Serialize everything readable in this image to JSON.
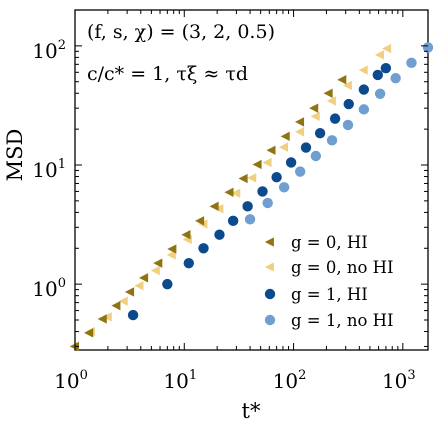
{
  "chart_data": {
    "type": "scatter",
    "title": "",
    "xlabel": "t*",
    "ylabel": "MSD",
    "x_scale": "log",
    "y_scale": "log",
    "xlim": [
      1,
      1700
    ],
    "ylim": [
      0.28,
      200
    ],
    "x_ticks": [
      {
        "value": 1,
        "base": "10",
        "exp": "0"
      },
      {
        "value": 10,
        "base": "10",
        "exp": "1"
      },
      {
        "value": 100,
        "base": "10",
        "exp": "2"
      },
      {
        "value": 1000,
        "base": "10",
        "exp": "3"
      }
    ],
    "y_ticks": [
      {
        "value": 1,
        "base": "10",
        "exp": "0"
      },
      {
        "value": 10,
        "base": "10",
        "exp": "1"
      },
      {
        "value": 100,
        "base": "10",
        "exp": "2"
      }
    ],
    "grid": false,
    "legend_position": "bottom-right",
    "annotations": [
      "(f, s, χ) = (3, 2, 0.5)",
      "c/c* = 1, τξ ≈ τd"
    ],
    "series": [
      {
        "name": "g = 0, HI",
        "marker": "triangle-left",
        "color": "#8f7410",
        "x_range": [
          1,
          280
        ],
        "x": [
          1.0,
          1.35,
          1.8,
          2.4,
          3.2,
          4.3,
          5.8,
          7.8,
          10.5,
          14,
          19,
          26,
          35,
          47,
          63,
          85,
          115,
          155,
          210,
          280
        ],
        "y": [
          0.3,
          0.39,
          0.51,
          0.66,
          0.86,
          1.13,
          1.5,
          1.97,
          2.6,
          3.4,
          4.5,
          5.9,
          7.7,
          10.1,
          13.3,
          17.4,
          23,
          30,
          40,
          52
        ]
      },
      {
        "name": "g = 0, no HI",
        "marker": "triangle-left",
        "color": "#f0d080",
        "x_range": [
          1,
          720
        ],
        "x": [
          1.0,
          1.4,
          2.0,
          2.8,
          3.9,
          5.5,
          7.7,
          10.8,
          15,
          21,
          30,
          42,
          58,
          82,
          115,
          160,
          225,
          315,
          440,
          620,
          720
        ],
        "y": [
          0.3,
          0.4,
          0.53,
          0.72,
          0.97,
          1.3,
          1.76,
          2.37,
          3.2,
          4.3,
          5.8,
          7.8,
          10.5,
          14.1,
          19,
          25.6,
          34.5,
          46.5,
          62.6,
          84,
          95
        ]
      },
      {
        "name": "g = 1, HI",
        "marker": "circle",
        "color": "#0c4a8e",
        "x_range": [
          3.4,
          700
        ],
        "x": [
          3.4,
          7,
          11,
          15,
          21,
          28,
          38,
          52,
          70,
          95,
          130,
          175,
          240,
          320,
          440,
          590,
          700
        ],
        "y": [
          0.55,
          1.0,
          1.5,
          2.0,
          2.6,
          3.4,
          4.5,
          6.0,
          7.9,
          10.5,
          14.0,
          18.5,
          24.5,
          32.5,
          43,
          57,
          65
        ]
      },
      {
        "name": "g = 1, no HI",
        "marker": "circle",
        "color": "#6f9fd0",
        "x_range": [
          40,
          1700
        ],
        "x": [
          40,
          58,
          82,
          115,
          160,
          225,
          315,
          440,
          620,
          860,
          1200,
          1700
        ],
        "y": [
          3.5,
          4.8,
          6.5,
          8.8,
          11.9,
          16.1,
          21.7,
          29.3,
          39.6,
          53.5,
          72,
          97
        ]
      }
    ]
  }
}
